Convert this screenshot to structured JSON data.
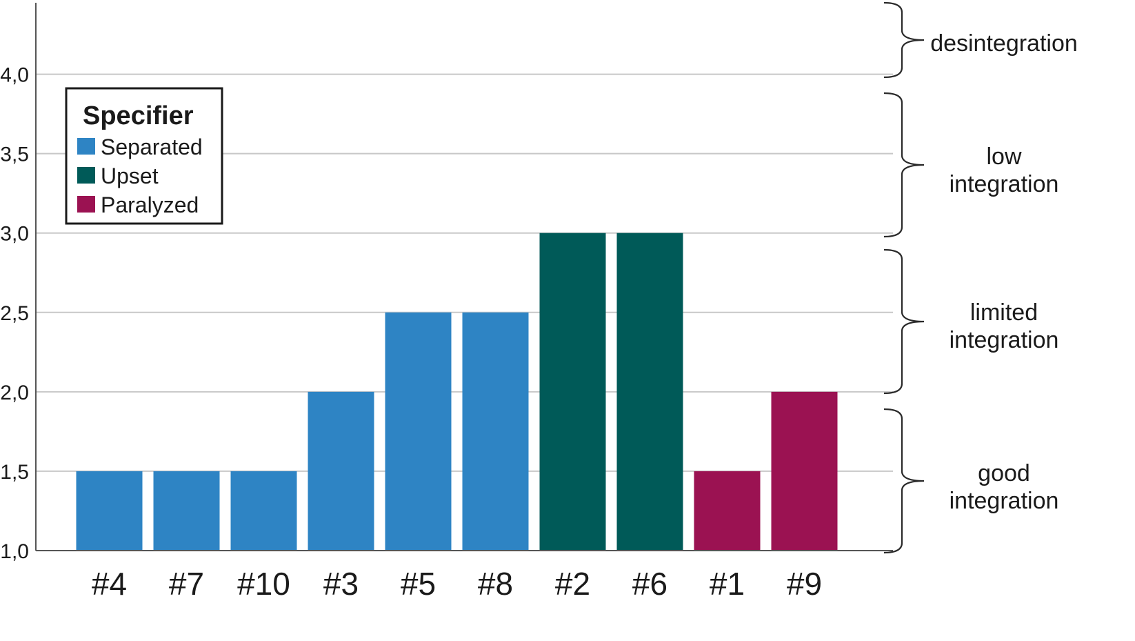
{
  "chart_data": {
    "type": "bar",
    "categories": [
      "#4",
      "#7",
      "#10",
      "#3",
      "#5",
      "#8",
      "#2",
      "#6",
      "#1",
      "#9"
    ],
    "values": [
      1.5,
      1.5,
      1.5,
      2.0,
      2.5,
      2.5,
      3.0,
      3.0,
      1.5,
      2.0
    ],
    "groups": [
      "Separated",
      "Separated",
      "Separated",
      "Separated",
      "Separated",
      "Separated",
      "Upset",
      "Upset",
      "Paralyzed",
      "Paralyzed"
    ],
    "ylim": [
      1.0,
      4.45
    ],
    "yticks": [
      1.0,
      1.5,
      2.0,
      2.5,
      3.0,
      3.5,
      4.0
    ],
    "ytick_labels": [
      "1,0",
      "1,5",
      "2,0",
      "2,5",
      "3,0",
      "3,5",
      "4,0"
    ],
    "grid": true,
    "legend": {
      "title": "Specifier",
      "placement": "top-left",
      "entries": [
        {
          "name": "Separated",
          "color": "#2e84c4"
        },
        {
          "name": "Upset",
          "color": "#005a58"
        },
        {
          "name": "Paralyzed",
          "color": "#9b1252"
        }
      ]
    },
    "bands": [
      {
        "lines": [
          "desintegration"
        ],
        "from": 4.0,
        "to": 4.45
      },
      {
        "lines": [
          "low",
          "integration"
        ],
        "from": 3.0,
        "to": 4.0
      },
      {
        "lines": [
          "limited",
          "integration"
        ],
        "from": 2.0,
        "to": 3.0
      },
      {
        "lines": [
          "good",
          "integration"
        ],
        "from": 1.0,
        "to": 2.0
      }
    ]
  }
}
